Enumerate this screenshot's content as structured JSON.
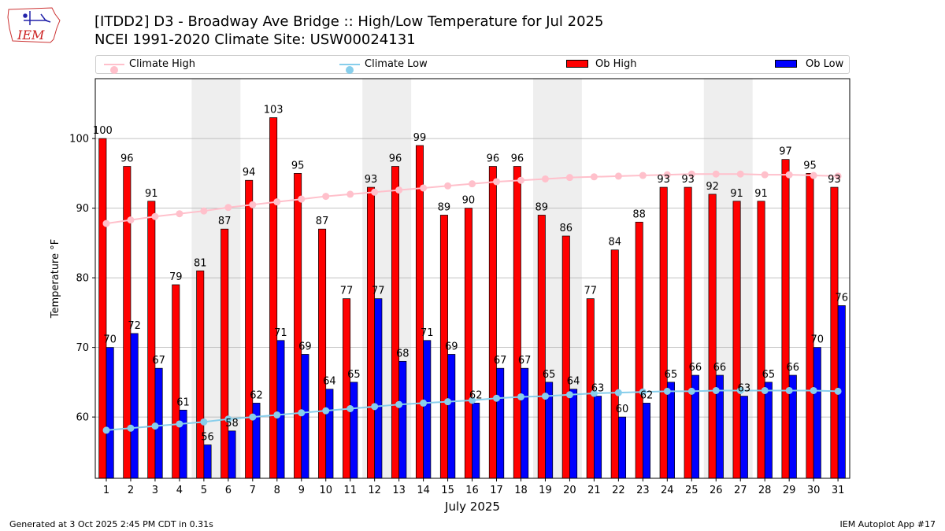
{
  "header": {
    "title_line1": "[ITDD2] D3 - Broadway Ave Bridge  :: High/Low Temperature for Jul 2025",
    "title_line2": "NCEI 1991-2020 Climate Site: USW00024131"
  },
  "logo": {
    "text": "IEM"
  },
  "footer": {
    "generated": "Generated at 3 Oct 2025 2:45 PM CDT in 0.31s",
    "app": "IEM Autoplot App #17"
  },
  "colors": {
    "ob_high": "#ff0000",
    "ob_low": "#0000ff",
    "climate_high": "#ffc0cb",
    "climate_low": "#87ceeb",
    "weekend_shade": "#eeeeee",
    "grid": "#b0b0b0"
  },
  "chart_data": {
    "type": "bar",
    "xlabel": "July 2025",
    "ylabel": "Temperature °F",
    "ylim": [
      51.2,
      108.6
    ],
    "yticks": [
      60,
      70,
      80,
      90,
      100
    ],
    "grid": "horizontal",
    "legend_position": "top",
    "categories": [
      "1",
      "2",
      "3",
      "4",
      "5",
      "6",
      "7",
      "8",
      "9",
      "10",
      "11",
      "12",
      "13",
      "14",
      "15",
      "16",
      "17",
      "18",
      "19",
      "20",
      "21",
      "22",
      "23",
      "24",
      "25",
      "26",
      "27",
      "28",
      "29",
      "30",
      "31"
    ],
    "weekend_days": [
      [
        5,
        6
      ],
      [
        12,
        13
      ],
      [
        19,
        20
      ],
      [
        26,
        27
      ]
    ],
    "series": [
      {
        "name": "Ob High",
        "kind": "bar",
        "values": [
          100,
          96,
          91,
          79,
          81,
          87,
          94,
          103,
          95,
          87,
          77,
          93,
          96,
          99,
          89,
          90,
          96,
          96,
          89,
          86,
          77,
          84,
          88,
          93,
          93,
          92,
          91,
          91,
          97,
          95,
          93
        ]
      },
      {
        "name": "Ob Low",
        "kind": "bar",
        "values": [
          70,
          72,
          67,
          61,
          56,
          58,
          62,
          71,
          69,
          64,
          65,
          77,
          68,
          71,
          69,
          62,
          67,
          67,
          65,
          64,
          63,
          60,
          62,
          65,
          66,
          66,
          63,
          65,
          66,
          70,
          76
        ]
      },
      {
        "name": "Climate High",
        "kind": "line",
        "values": [
          87.8,
          88.3,
          88.8,
          89.2,
          89.6,
          90.1,
          90.5,
          90.9,
          91.3,
          91.7,
          92.0,
          92.3,
          92.6,
          92.9,
          93.2,
          93.5,
          93.8,
          94.0,
          94.2,
          94.4,
          94.5,
          94.6,
          94.7,
          94.8,
          94.9,
          94.9,
          94.9,
          94.8,
          94.8,
          94.7,
          94.6
        ]
      },
      {
        "name": "Climate Low",
        "kind": "line",
        "values": [
          58.1,
          58.4,
          58.7,
          59.0,
          59.3,
          59.7,
          60.0,
          60.3,
          60.6,
          60.9,
          61.2,
          61.5,
          61.8,
          62.0,
          62.2,
          62.4,
          62.7,
          62.9,
          63.0,
          63.2,
          63.4,
          63.5,
          63.6,
          63.7,
          63.7,
          63.8,
          63.8,
          63.8,
          63.8,
          63.8,
          63.7
        ]
      }
    ]
  }
}
